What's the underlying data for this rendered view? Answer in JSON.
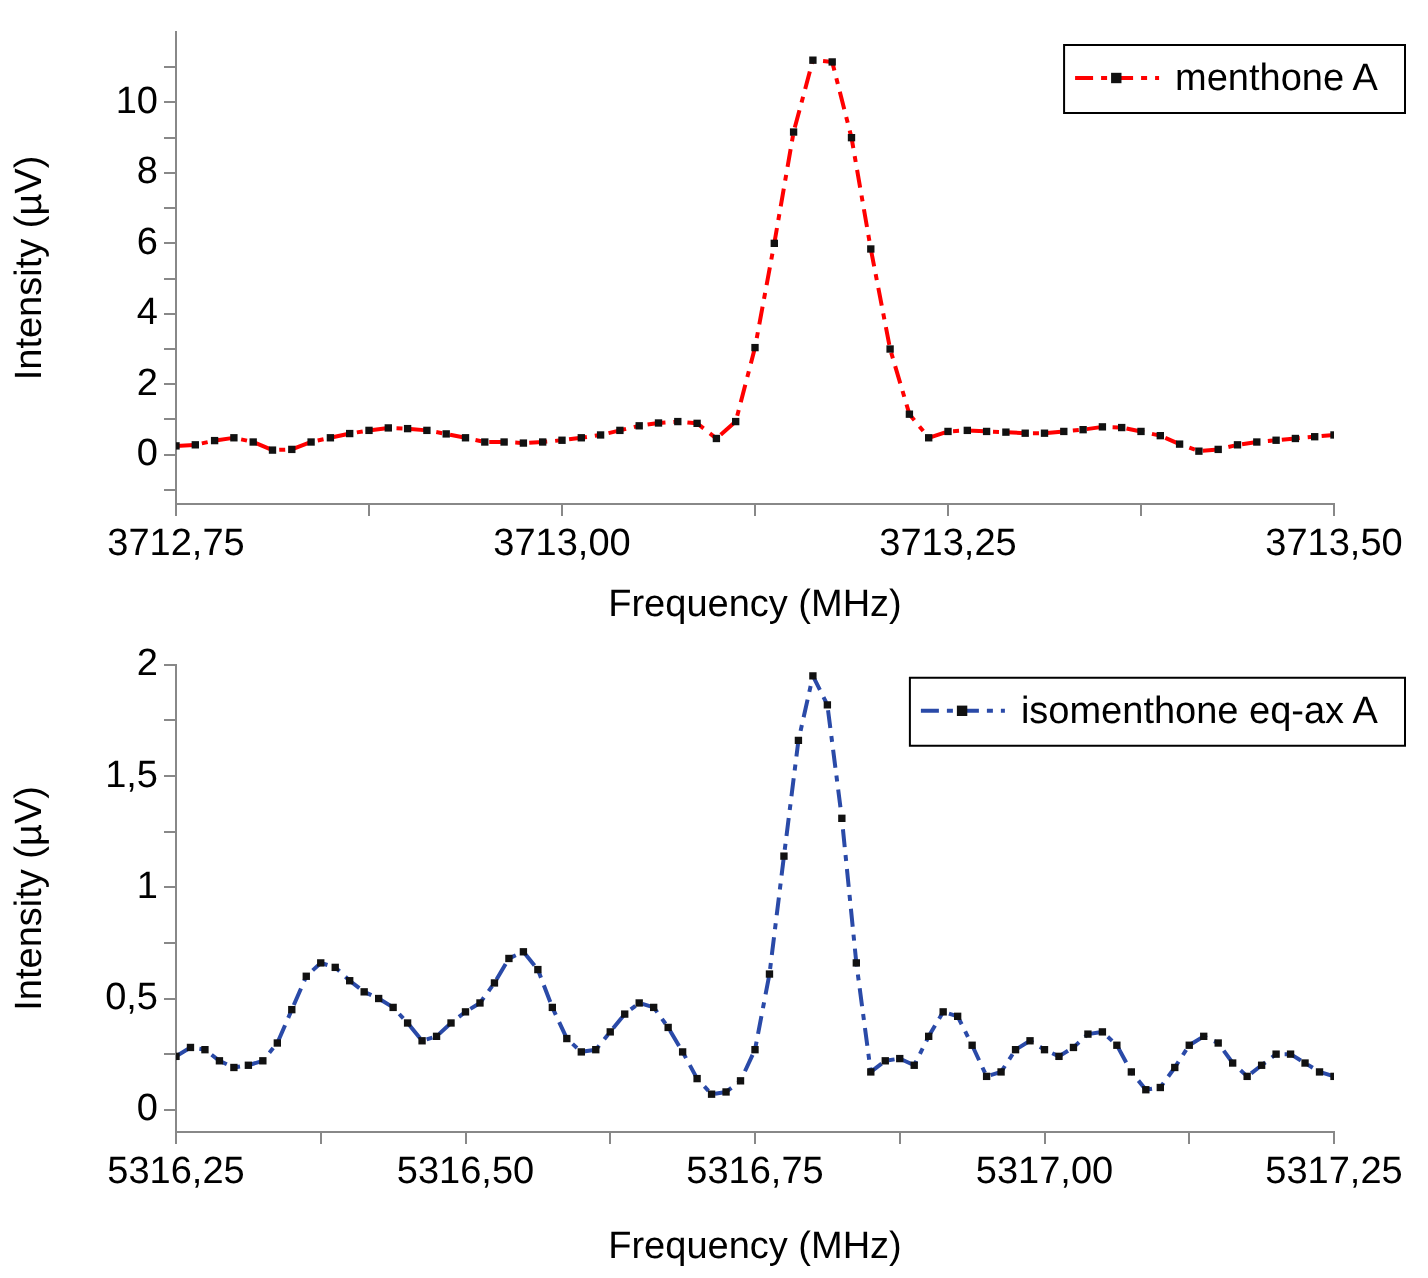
{
  "chart_data": [
    {
      "type": "line",
      "xlabel": "Frequency (MHz)",
      "ylabel": "Intensity (µV)",
      "x": [
        3712.75,
        3712.7625,
        3712.775,
        3712.7875,
        3712.8,
        3712.8125,
        3712.825,
        3712.8375,
        3712.85,
        3712.8625,
        3712.875,
        3712.8875,
        3712.9,
        3712.9125,
        3712.925,
        3712.9375,
        3712.95,
        3712.9625,
        3712.975,
        3712.9875,
        3713,
        3713.0125,
        3713.025,
        3713.0375,
        3713.05,
        3713.0625,
        3713.075,
        3713.0875,
        3713.1,
        3713.1125,
        3713.125,
        3713.1375,
        3713.15,
        3713.1625,
        3713.175,
        3713.1875,
        3713.2,
        3713.2125,
        3713.225,
        3713.2375,
        3713.25,
        3713.2625,
        3713.275,
        3713.2875,
        3713.3,
        3713.3125,
        3713.325,
        3713.3375,
        3713.35,
        3713.3625,
        3713.375,
        3713.3875,
        3713.4,
        3713.4125,
        3713.425,
        3713.4375,
        3713.45,
        3713.4625,
        3713.475,
        3713.4875,
        3713.5
      ],
      "series": [
        {
          "name": "menthone A",
          "color": "#ff0000",
          "values": [
            0.25,
            0.28,
            0.4,
            0.48,
            0.36,
            0.13,
            0.15,
            0.36,
            0.48,
            0.6,
            0.69,
            0.76,
            0.74,
            0.69,
            0.59,
            0.48,
            0.36,
            0.36,
            0.33,
            0.36,
            0.41,
            0.48,
            0.56,
            0.69,
            0.82,
            0.9,
            0.94,
            0.89,
            0.46,
            0.94,
            3.04,
            6.0,
            9.16,
            11.2,
            11.15,
            9.0,
            5.84,
            3.0,
            1.15,
            0.48,
            0.66,
            0.69,
            0.66,
            0.64,
            0.61,
            0.61,
            0.66,
            0.71,
            0.79,
            0.77,
            0.66,
            0.54,
            0.3,
            0.1,
            0.15,
            0.28,
            0.36,
            0.41,
            0.46,
            0.51,
            0.56
          ]
        }
      ],
      "xlim": [
        3712.75,
        3713.5
      ],
      "xticks": [
        {
          "value": 3712.75,
          "label": "3712,75"
        },
        {
          "value": 3712.875,
          "label": null
        },
        {
          "value": 3713,
          "label": "3713,00"
        },
        {
          "value": 3713.125,
          "label": null
        },
        {
          "value": 3713.25,
          "label": "3713,25"
        },
        {
          "value": 3713.375,
          "label": null
        },
        {
          "value": 3713.5,
          "label": "3713,50"
        }
      ],
      "ylim": [
        -1.4,
        12
      ],
      "yticks": [
        {
          "value": -1,
          "label": null
        },
        0,
        {
          "value": 1,
          "label": null
        },
        2,
        {
          "value": 3,
          "label": null
        },
        4,
        {
          "value": 5,
          "label": null
        },
        6,
        {
          "value": 7,
          "label": null
        },
        8,
        {
          "value": 9,
          "label": null
        },
        10,
        {
          "value": 11,
          "label": null
        }
      ],
      "legend": "top right",
      "marker": "square",
      "line_style": "dashed",
      "grid": false
    },
    {
      "type": "line",
      "xlabel": "Frequency (MHz)",
      "ylabel": "Intensity (µV)",
      "x": [
        5316.25,
        5316.2625,
        5316.275,
        5316.2875,
        5316.3,
        5316.3125,
        5316.325,
        5316.3375,
        5316.35,
        5316.3625,
        5316.375,
        5316.3875,
        5316.4,
        5316.4125,
        5316.425,
        5316.4375,
        5316.45,
        5316.4625,
        5316.475,
        5316.4875,
        5316.5,
        5316.5125,
        5316.525,
        5316.5375,
        5316.55,
        5316.5625,
        5316.575,
        5316.5875,
        5316.6,
        5316.6125,
        5316.625,
        5316.6375,
        5316.65,
        5316.6625,
        5316.675,
        5316.6875,
        5316.7,
        5316.7125,
        5316.725,
        5316.7375,
        5316.75,
        5316.7625,
        5316.775,
        5316.7875,
        5316.8,
        5316.8125,
        5316.825,
        5316.8375,
        5316.85,
        5316.8625,
        5316.875,
        5316.8875,
        5316.9,
        5316.9125,
        5316.925,
        5316.9375,
        5316.95,
        5316.9625,
        5316.975,
        5316.9875,
        5317,
        5317.0125,
        5317.025,
        5317.0375,
        5317.05,
        5317.0625,
        5317.075,
        5317.0875,
        5317.1,
        5317.1125,
        5317.125,
        5317.1375,
        5317.15,
        5317.1625,
        5317.175,
        5317.1875,
        5317.2,
        5317.2125,
        5317.225,
        5317.2375,
        5317.25
      ],
      "series": [
        {
          "name": "isomenthone eq-ax A",
          "color": "#2a4aa8",
          "values": [
            0.24,
            0.28,
            0.27,
            0.22,
            0.19,
            0.2,
            0.22,
            0.3,
            0.45,
            0.6,
            0.66,
            0.64,
            0.58,
            0.53,
            0.5,
            0.46,
            0.39,
            0.31,
            0.33,
            0.39,
            0.44,
            0.48,
            0.57,
            0.68,
            0.71,
            0.63,
            0.46,
            0.32,
            0.26,
            0.27,
            0.35,
            0.43,
            0.48,
            0.46,
            0.37,
            0.26,
            0.14,
            0.07,
            0.08,
            0.13,
            0.27,
            0.61,
            1.14,
            1.66,
            1.95,
            1.82,
            1.31,
            0.66,
            0.17,
            0.22,
            0.23,
            0.2,
            0.33,
            0.44,
            0.42,
            0.29,
            0.15,
            0.17,
            0.27,
            0.31,
            0.27,
            0.24,
            0.28,
            0.34,
            0.35,
            0.29,
            0.17,
            0.09,
            0.1,
            0.19,
            0.29,
            0.33,
            0.3,
            0.21,
            0.15,
            0.2,
            0.25,
            0.25,
            0.21,
            0.17,
            0.15
          ]
        }
      ],
      "xlim": [
        5316.25,
        5317.25
      ],
      "xticks": [
        {
          "value": 5316.25,
          "label": "5316,25"
        },
        {
          "value": 5316.375,
          "label": null
        },
        {
          "value": 5316.5,
          "label": "5316,50"
        },
        {
          "value": 5316.625,
          "label": null
        },
        {
          "value": 5316.75,
          "label": "5316,75"
        },
        {
          "value": 5316.875,
          "label": null
        },
        {
          "value": 5317,
          "label": "5317,00"
        },
        {
          "value": 5317.125,
          "label": null
        },
        {
          "value": 5317.25,
          "label": "5317,25"
        }
      ],
      "ylim": [
        -0.1,
        2
      ],
      "yticks": [
        0,
        {
          "value": 0.25,
          "label": null
        },
        {
          "value": 0.5,
          "label": "0,5"
        },
        {
          "value": 0.75,
          "label": null
        },
        1,
        {
          "value": 1.25,
          "label": null
        },
        {
          "value": 1.5,
          "label": "1,5"
        },
        {
          "value": 1.75,
          "label": null
        },
        2
      ],
      "legend": "top right",
      "marker": "square",
      "line_style": "dashed",
      "grid": false
    }
  ]
}
